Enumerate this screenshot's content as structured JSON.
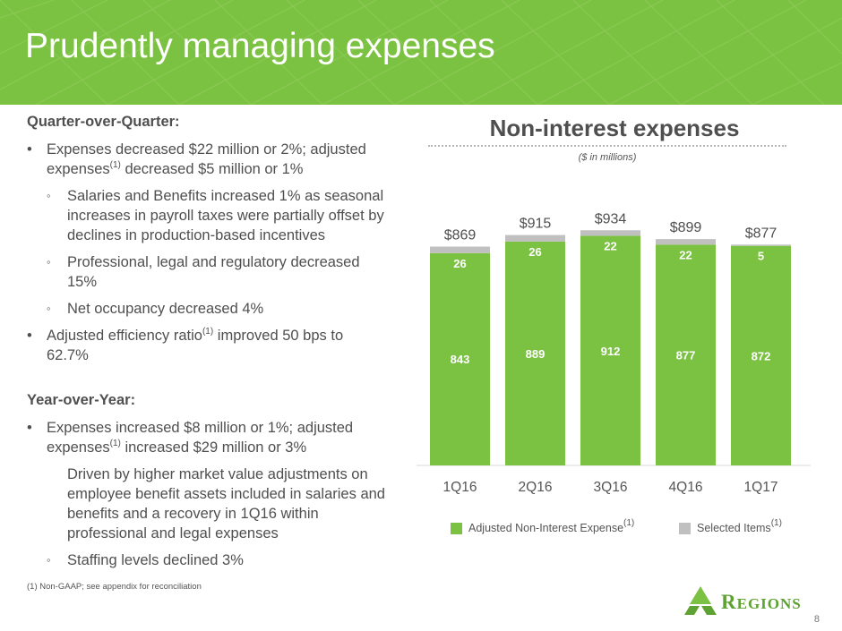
{
  "header": {
    "title": "Prudently managing expenses"
  },
  "left": {
    "qoq_header": "Quarter-over-Quarter:",
    "qoq_b1_pre": "Expenses decreased $22 million or 2%; adjusted expenses",
    "qoq_b1_post": " decreased $5 million or 1%",
    "qoq_s1": "Salaries and Benefits increased 1% as seasonal increases in payroll taxes were partially offset by declines in production-based incentives",
    "qoq_s2": "Professional, legal and regulatory decreased 15%",
    "qoq_s3": "Net occupancy decreased 4%",
    "qoq_b2_pre": "Adjusted efficiency ratio",
    "qoq_b2_post": " improved 50 bps to 62.7%",
    "yoy_header": "Year-over-Year:",
    "yoy_b1_pre": "Expenses increased $8 million or 1%; adjusted expenses",
    "yoy_b1_post": " increased $29 million or 3%",
    "yoy_s1": "Driven by higher market value adjustments on employee benefit assets included in salaries and benefits and a recovery in 1Q16 within professional and legal expenses",
    "yoy_s2": "Staffing levels declined 3%",
    "footnote_marker": "(1)"
  },
  "chart_data": {
    "type": "bar",
    "stacked": true,
    "title": "Non-interest expenses",
    "subtitle": "($ in millions)",
    "categories": [
      "1Q16",
      "2Q16",
      "3Q16",
      "4Q16",
      "1Q17"
    ],
    "series": [
      {
        "name": "Adjusted Non-Interest Expense",
        "values": [
          843,
          889,
          912,
          877,
          872
        ],
        "color": "#7cc242"
      },
      {
        "name": "Selected Items",
        "values": [
          26,
          26,
          22,
          22,
          5
        ],
        "color": "#c0c0c0"
      }
    ],
    "totals": [
      "$869",
      "$915",
      "$934",
      "$899",
      "$877"
    ],
    "legend_position": "bottom",
    "grid": false
  },
  "legend": {
    "adjusted_label": "Adjusted Non-Interest Expense",
    "selected_label": "Selected Items",
    "marker": "(1)"
  },
  "footer": {
    "footnote": "(1)    Non-GAAP; see appendix for reconciliation",
    "logo_text_initial": "R",
    "logo_text_rest": "EGIONS",
    "page_number": "8"
  }
}
